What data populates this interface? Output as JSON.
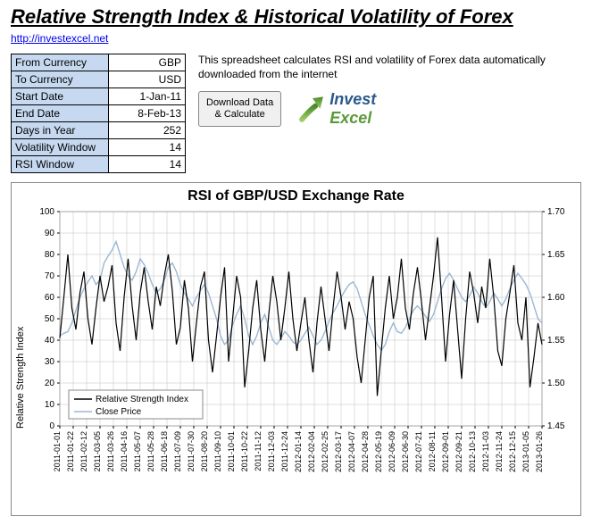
{
  "title": "Relative Strength Index & Historical Volatility of Forex",
  "link_text": "http://investexcel.net",
  "params": [
    {
      "label": "From Currency",
      "value": "GBP"
    },
    {
      "label": "To Currency",
      "value": "USD"
    },
    {
      "label": "Start Date",
      "value": "1-Jan-11"
    },
    {
      "label": "End Date",
      "value": "8-Feb-13"
    },
    {
      "label": "Days in Year",
      "value": "252"
    },
    {
      "label": "Volatility  Window",
      "value": "14"
    },
    {
      "label": "RSI Window",
      "value": "14"
    }
  ],
  "description": "This spreadsheet calculates RSI and volatility of Forex data automatically downloaded from the internet",
  "button_label": "Download Data\n& Calculate",
  "logo": {
    "part1": "Invest",
    "part2": "Excel"
  },
  "chart": {
    "title": "RSI of GBP/USD Exchange Rate",
    "y_left": {
      "label": "Relative Strength Index",
      "min": 0,
      "max": 100,
      "step": 10
    },
    "y_right": {
      "min": 1.45,
      "max": 1.7,
      "step": 0.05
    },
    "x_labels": [
      "2011-01-01",
      "2011-01-22",
      "2011-02-12",
      "2011-03-05",
      "2011-03-26",
      "2011-04-16",
      "2011-05-07",
      "2011-05-28",
      "2011-06-18",
      "2011-07-09",
      "2011-07-30",
      "2011-08-20",
      "2011-09-10",
      "2011-10-01",
      "2011-10-22",
      "2011-11-12",
      "2011-12-03",
      "2011-12-24",
      "2012-01-14",
      "2012-02-04",
      "2012-02-25",
      "2012-03-17",
      "2012-04-07",
      "2012-04-28",
      "2012-05-19",
      "2012-06-09",
      "2012-06-30",
      "2012-07-21",
      "2012-08-11",
      "2012-09-01",
      "2012-09-21",
      "2012-10-13",
      "2012-11-03",
      "2012-11-24",
      "2012-12-15",
      "2013-01-05",
      "2013-01-26"
    ],
    "legend": {
      "items": [
        {
          "label": "Relative Strength Index",
          "color": "#000000"
        },
        {
          "label": "Close Price",
          "color": "#9bb7d4"
        }
      ]
    },
    "grid_color": "#bfbfbf",
    "series": {
      "rsi": {
        "color": "#000000",
        "width": 1.2,
        "values": [
          41,
          60,
          80,
          55,
          45,
          62,
          72,
          50,
          38,
          55,
          70,
          58,
          65,
          75,
          48,
          35,
          60,
          78,
          56,
          40,
          62,
          74,
          58,
          45,
          65,
          56,
          70,
          80,
          63,
          38,
          46,
          68,
          55,
          30,
          48,
          65,
          72,
          40,
          25,
          42,
          60,
          74,
          30,
          50,
          70,
          60,
          18,
          35,
          55,
          68,
          45,
          30,
          52,
          70,
          58,
          40,
          55,
          72,
          50,
          35,
          48,
          60,
          40,
          25,
          48,
          65,
          50,
          35,
          55,
          72,
          60,
          45,
          58,
          50,
          32,
          20,
          40,
          60,
          70,
          14,
          35,
          55,
          70,
          50,
          60,
          78,
          55,
          45,
          62,
          74,
          58,
          40,
          55,
          70,
          88,
          60,
          30,
          52,
          68,
          45,
          22,
          50,
          72,
          62,
          48,
          65,
          55,
          78,
          60,
          35,
          28,
          50,
          62,
          75,
          48,
          40,
          60,
          18,
          32,
          48,
          38
        ]
      },
      "price": {
        "color": "#9bb7d4",
        "width": 1.4,
        "values": [
          1.555,
          1.558,
          1.56,
          1.57,
          1.585,
          1.6,
          1.61,
          1.618,
          1.625,
          1.615,
          1.62,
          1.64,
          1.648,
          1.655,
          1.665,
          1.65,
          1.635,
          1.625,
          1.62,
          1.63,
          1.645,
          1.638,
          1.628,
          1.615,
          1.605,
          1.61,
          1.62,
          1.635,
          1.64,
          1.63,
          1.615,
          1.605,
          1.598,
          1.59,
          1.6,
          1.608,
          1.615,
          1.605,
          1.59,
          1.575,
          1.555,
          1.545,
          1.55,
          1.568,
          1.58,
          1.59,
          1.575,
          1.555,
          1.545,
          1.555,
          1.57,
          1.58,
          1.565,
          1.55,
          1.545,
          1.552,
          1.56,
          1.555,
          1.548,
          1.545,
          1.55,
          1.558,
          1.565,
          1.555,
          1.545,
          1.55,
          1.56,
          1.572,
          1.582,
          1.59,
          1.6,
          1.608,
          1.615,
          1.618,
          1.61,
          1.595,
          1.58,
          1.568,
          1.555,
          1.545,
          1.538,
          1.545,
          1.56,
          1.57,
          1.56,
          1.558,
          1.565,
          1.575,
          1.585,
          1.59,
          1.585,
          1.578,
          1.572,
          1.58,
          1.595,
          1.61,
          1.622,
          1.628,
          1.62,
          1.61,
          1.6,
          1.595,
          1.602,
          1.612,
          1.605,
          1.595,
          1.588,
          1.595,
          1.605,
          1.598,
          1.59,
          1.598,
          1.61,
          1.62,
          1.628,
          1.622,
          1.615,
          1.605,
          1.59,
          1.575,
          1.57
        ]
      }
    }
  }
}
